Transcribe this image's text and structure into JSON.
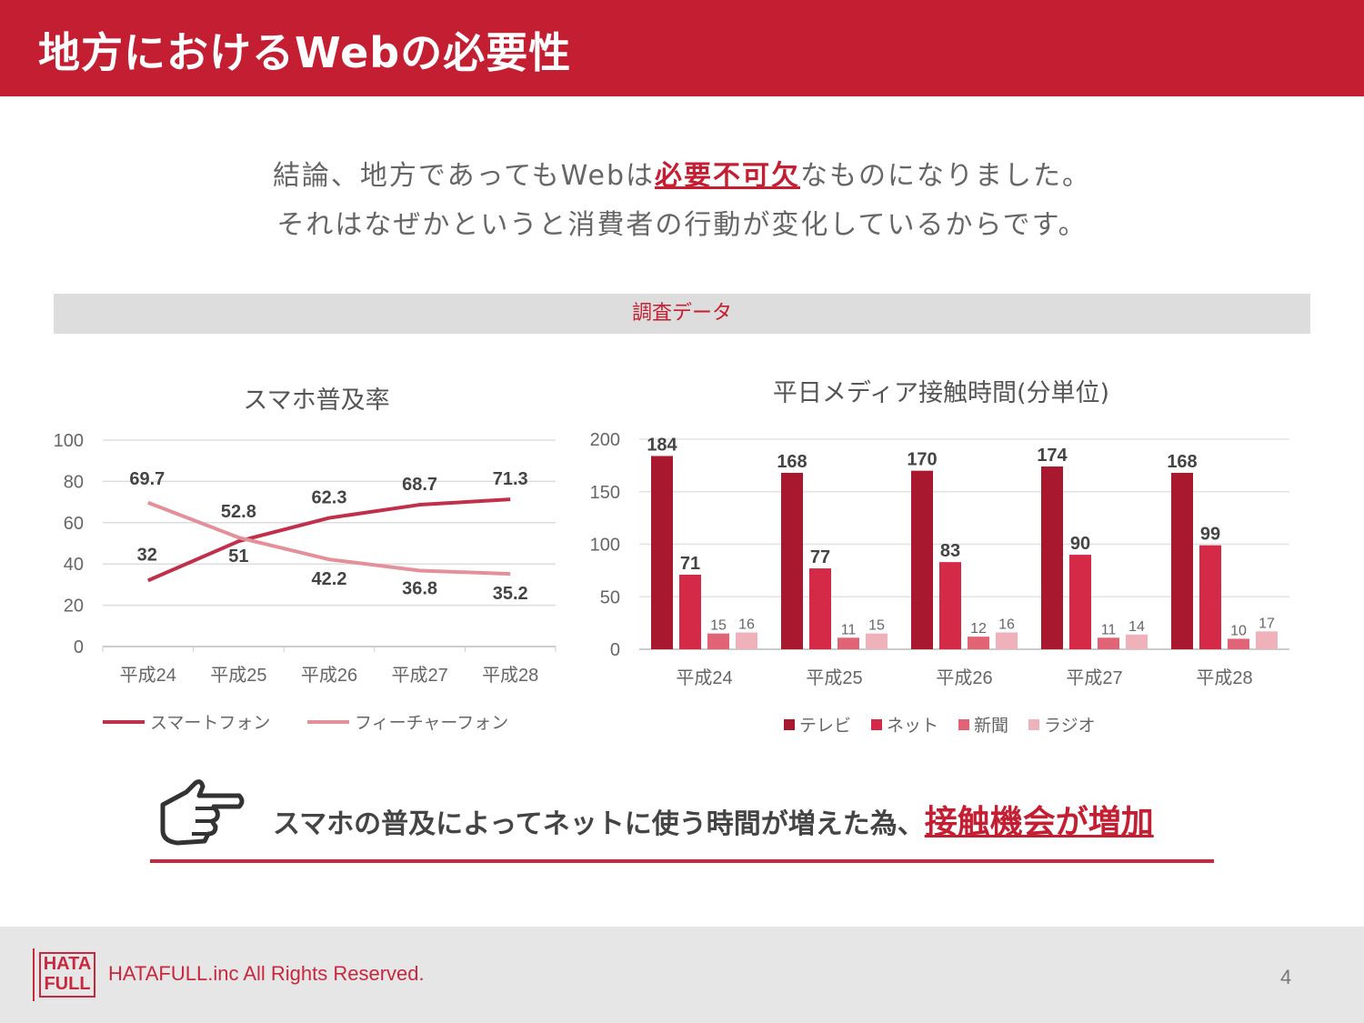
{
  "header": {
    "title": "地方におけるWebの必要性"
  },
  "lead": {
    "line1_pre": "結論、地方であってもWebは",
    "line1_em": "必要不可欠",
    "line1_post": "なものになりました。",
    "line2": "それはなぜかというと消費者の行動が変化しているからです。"
  },
  "band": {
    "label": "調査データ"
  },
  "colors": {
    "accent": "#c41e32",
    "smartphone": "#c0304a",
    "feature": "#e4909a",
    "tv": "#a8182f",
    "net": "#d42a48",
    "paper": "#e06475",
    "radio": "#efb1ba"
  },
  "chart_data": [
    {
      "type": "line",
      "title": "スマホ普及率",
      "categories": [
        "平成24",
        "平成25",
        "平成26",
        "平成27",
        "平成28"
      ],
      "ylim": [
        0,
        100
      ],
      "yticks": [
        0,
        20,
        40,
        60,
        80,
        100
      ],
      "grid": true,
      "legend": "bottom",
      "series": [
        {
          "name": "スマートフォン",
          "values": [
            32,
            51,
            62.3,
            68.7,
            71.3
          ]
        },
        {
          "name": "フィーチャーフォン",
          "values": [
            69.7,
            52.8,
            42.2,
            36.8,
            35.2
          ]
        }
      ]
    },
    {
      "type": "bar",
      "title": "平日メディア接触時間(分単位)",
      "categories": [
        "平成24",
        "平成25",
        "平成26",
        "平成27",
        "平成28"
      ],
      "ylim": [
        0,
        200
      ],
      "yticks": [
        0,
        50,
        100,
        150,
        200
      ],
      "grid": true,
      "legend": "bottom",
      "series": [
        {
          "name": "テレビ",
          "values": [
            184,
            168,
            170,
            174,
            168
          ]
        },
        {
          "name": "ネット",
          "values": [
            71,
            77,
            83,
            90,
            99
          ]
        },
        {
          "name": "新聞",
          "values": [
            15,
            11,
            12,
            11,
            10
          ]
        },
        {
          "name": "ラジオ",
          "values": [
            16,
            15,
            16,
            14,
            17
          ]
        }
      ]
    }
  ],
  "icons": {
    "pointer": "pointing-hand-icon"
  },
  "conclusion": {
    "text": "スマホの普及によってネットに使う時間が増えた為、",
    "em": "接触機会が増加"
  },
  "footer": {
    "logo": "HATA FULL",
    "copyright": "HATAFULL.inc All Rights Reserved.",
    "page": "4"
  }
}
